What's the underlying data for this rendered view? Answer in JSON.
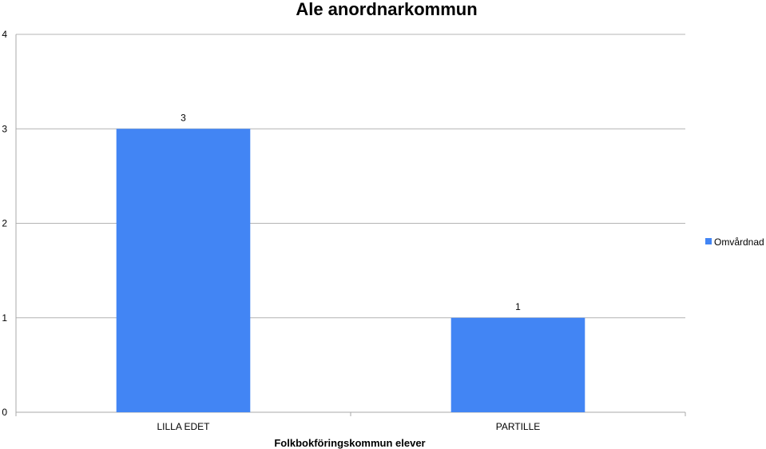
{
  "chart_data": {
    "type": "bar",
    "title": "Ale anordnarkommun",
    "xlabel": "Folkbokföringskommun elever",
    "ylabel": "",
    "categories": [
      "LILLA EDET",
      "PARTILLE"
    ],
    "series": [
      {
        "name": "Omvårdnad",
        "values": [
          3,
          1
        ],
        "color": "#4285f4"
      }
    ],
    "ylim": [
      0,
      4
    ],
    "yticks": [
      0,
      1,
      2,
      3,
      4
    ],
    "grid": true,
    "legend_position": "right"
  }
}
